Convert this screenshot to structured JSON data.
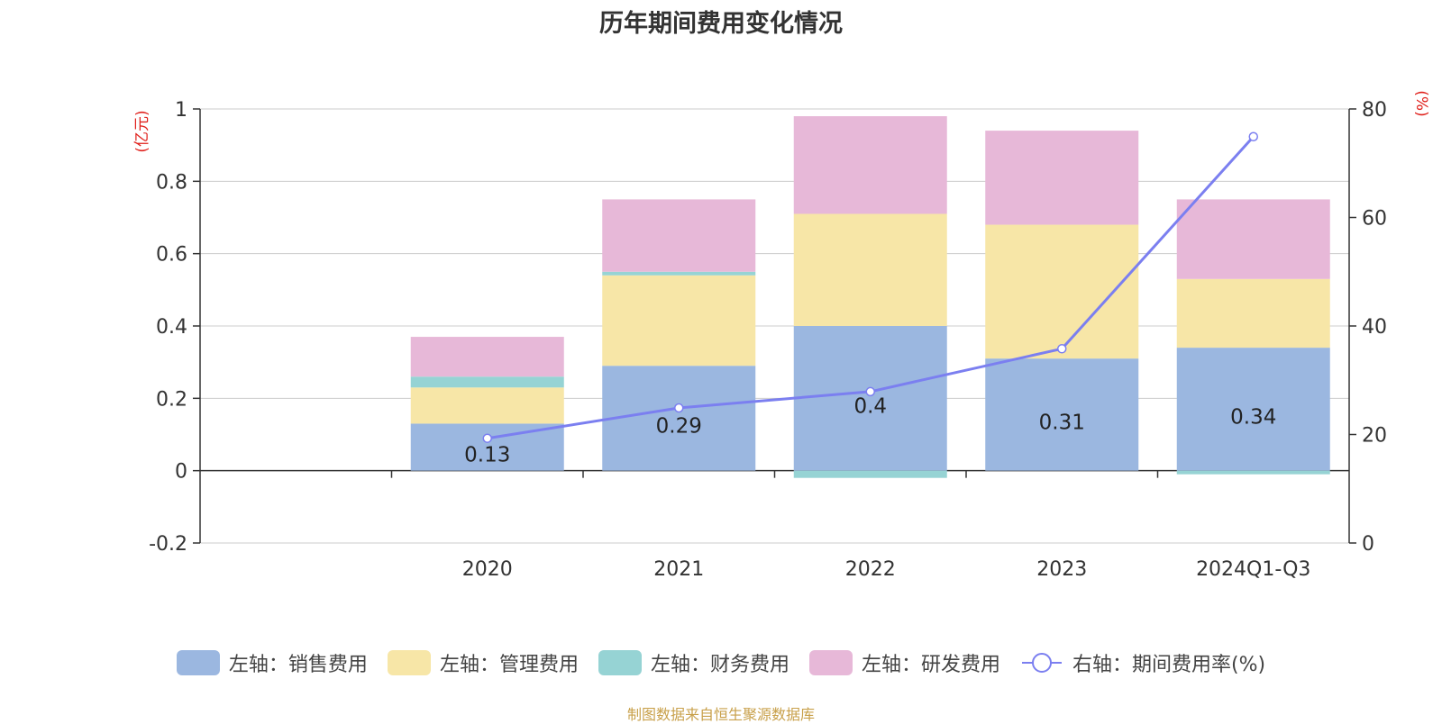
{
  "title": "历年期间费用变化情况",
  "source_note": "制图数据来自恒生聚源数据库",
  "chart_data": {
    "type": "bar",
    "stacked": true,
    "categories": [
      "",
      "2020",
      "2021",
      "2022",
      "2023",
      "2024Q1-Q3"
    ],
    "left_axis": {
      "unit": "(亿元)",
      "ylim": [
        -0.2,
        1
      ],
      "ticks": [
        -0.2,
        0,
        0.2,
        0.4,
        0.6,
        0.8,
        1
      ]
    },
    "right_axis": {
      "unit": "(%)",
      "ylim": [
        0,
        80
      ],
      "ticks": [
        0,
        20,
        40,
        60,
        80
      ]
    },
    "series": [
      {
        "name": "左轴：销售费用",
        "kind": "bar",
        "color": "#9bb7e0",
        "values": [
          null,
          0.13,
          0.29,
          0.4,
          0.31,
          0.34
        ],
        "labels": [
          "",
          "0.13",
          "0.29",
          "0.4",
          "0.31",
          "0.34"
        ]
      },
      {
        "name": "左轴：管理费用",
        "kind": "bar",
        "color": "#f7e6a7",
        "values": [
          null,
          0.1,
          0.25,
          0.31,
          0.37,
          0.19
        ]
      },
      {
        "name": "左轴：财务费用",
        "kind": "bar",
        "color": "#96d3d4",
        "values": [
          null,
          0.03,
          0.01,
          -0.02,
          0.0,
          -0.01
        ]
      },
      {
        "name": "左轴：研发费用",
        "kind": "bar",
        "color": "#e7b8d8",
        "values": [
          null,
          0.11,
          0.2,
          0.27,
          0.26,
          0.22
        ]
      },
      {
        "name": "右轴：期间费用率(%)",
        "kind": "line",
        "color": "#7b7ff0",
        "values": [
          null,
          19.3,
          24.9,
          27.9,
          35.8,
          74.9
        ]
      }
    ],
    "grid": true,
    "legend_position": "bottom"
  }
}
